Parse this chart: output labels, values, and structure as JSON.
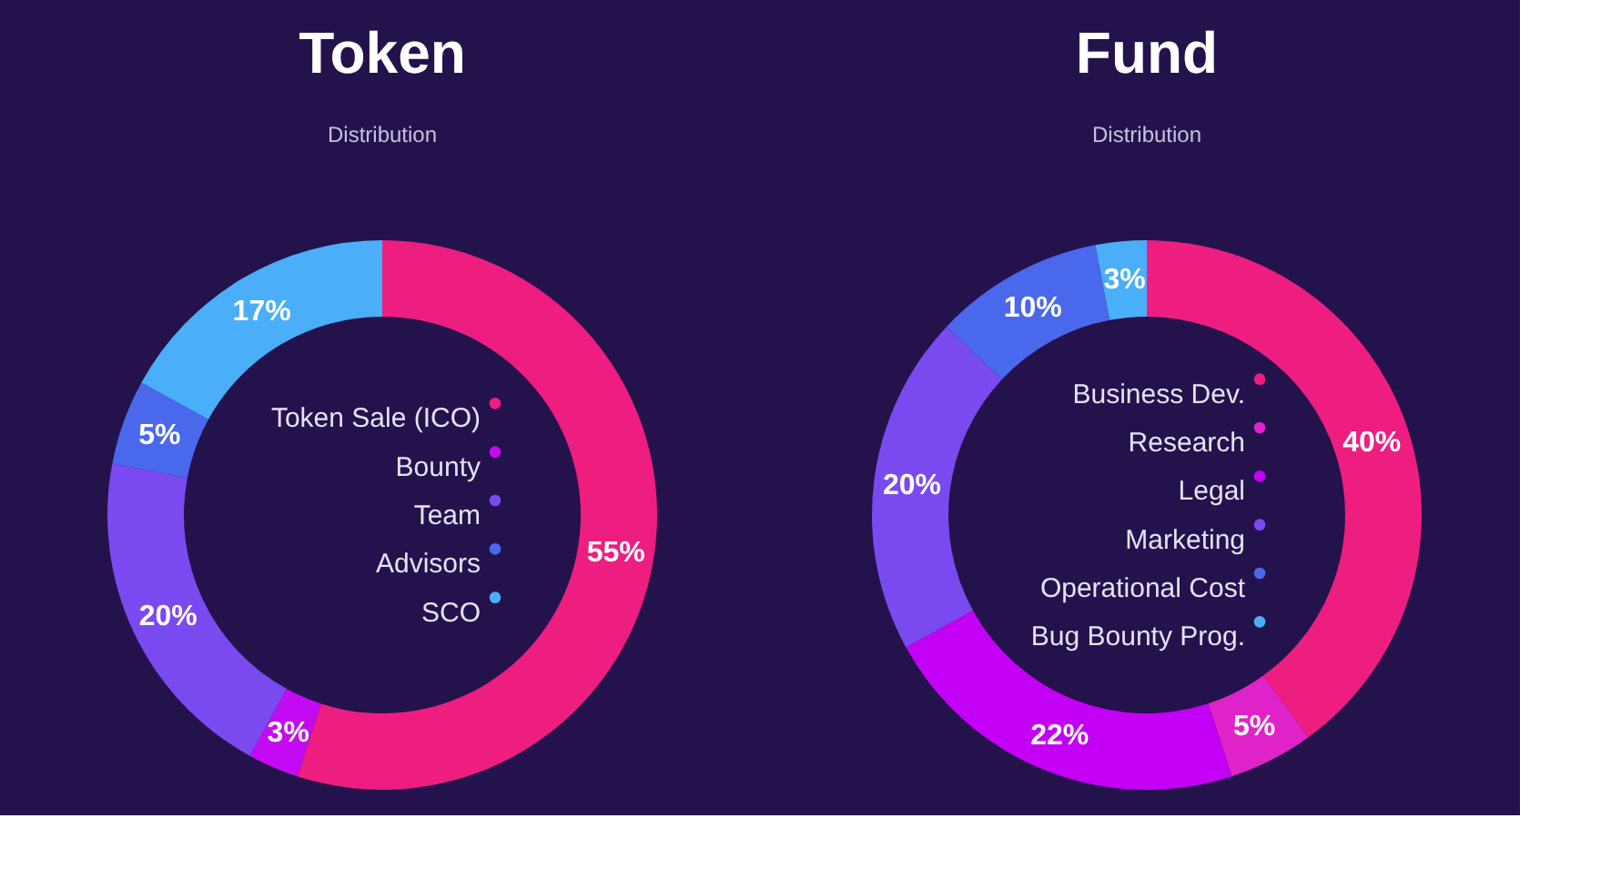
{
  "chart_data": [
    {
      "type": "donut",
      "title": "Token",
      "subtitle": "Distribution",
      "legend": "center",
      "categories": [
        "Token Sale (ICO)",
        "Bounty",
        "Team",
        "Advisors",
        "SCO"
      ],
      "values": [
        55,
        3,
        20,
        5,
        17
      ],
      "value_labels": [
        "55%",
        "3%",
        "20%",
        "5%",
        "17%"
      ],
      "colors": [
        "#ee1e80",
        "#c40af2",
        "#7a4af0",
        "#4a68ec",
        "#4aaef8"
      ]
    },
    {
      "type": "donut",
      "title": "Fund",
      "subtitle": "Distribution",
      "legend": "center",
      "categories": [
        "Business Dev.",
        "Research",
        "Legal",
        "Marketing",
        "Operational Cost",
        "Bug Bounty Prog."
      ],
      "values": [
        40,
        5,
        22,
        20,
        10,
        3
      ],
      "value_labels": [
        "40%",
        "5%",
        "22%",
        "20%",
        "10%",
        "3%"
      ],
      "colors": [
        "#ee1e80",
        "#e023c8",
        "#c300f5",
        "#7a4af0",
        "#4a68ec",
        "#4aaef8"
      ]
    }
  ]
}
